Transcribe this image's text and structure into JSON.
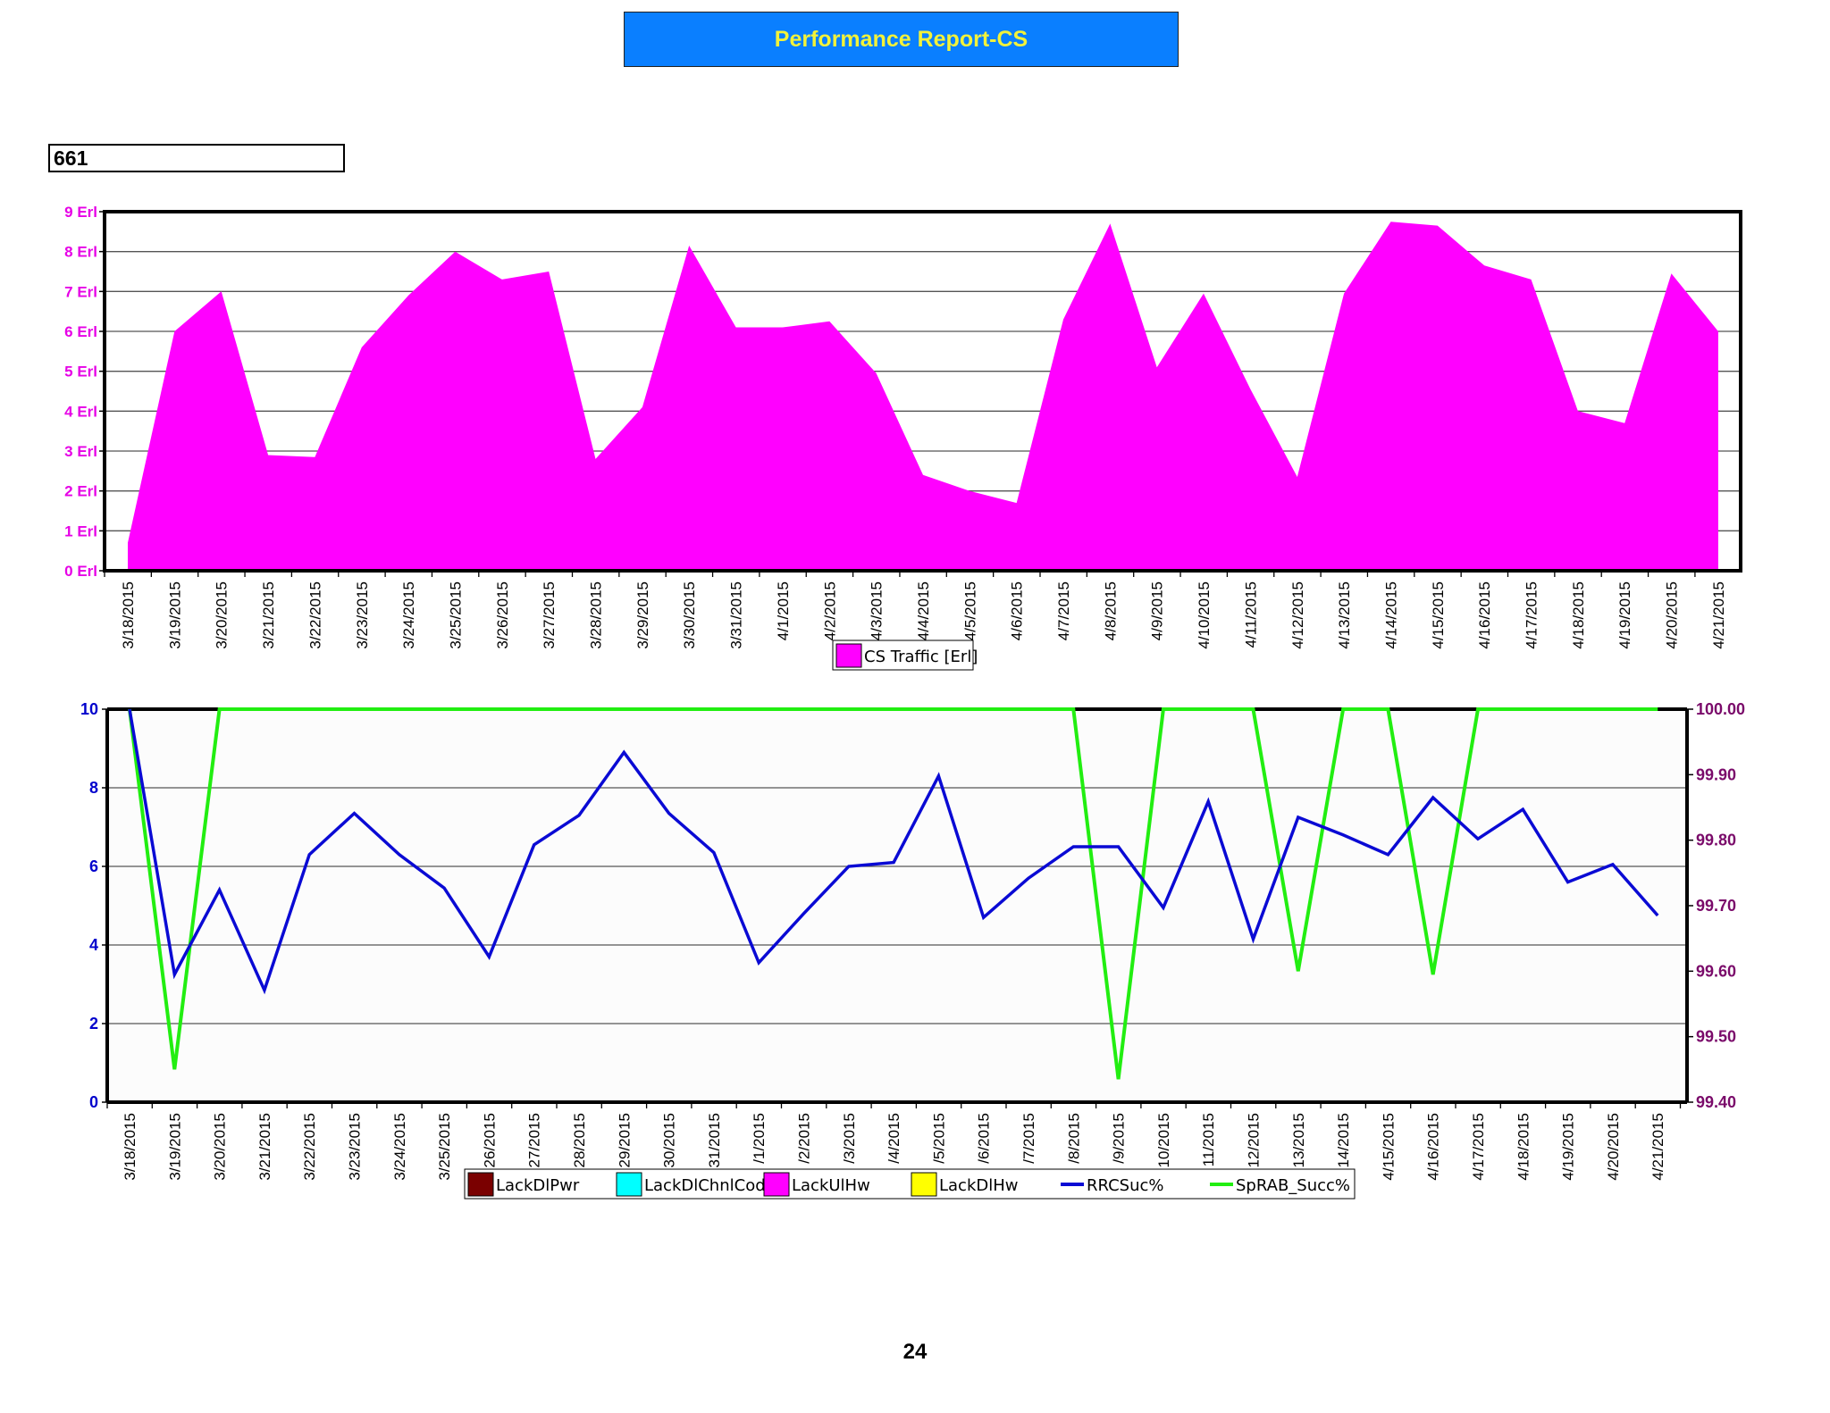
{
  "page_title": "Performance Report-CS",
  "cell_id": "661",
  "page_number": "24",
  "colors": {
    "banner_bg": "#0a7fff",
    "banner_text": "#f2f23a",
    "traffic_fill": "#ff00ff",
    "y_axis_top": "#e600e6",
    "y_axis_left_bottom": "#0000cc",
    "y_axis_right_bottom": "#7a0a6a",
    "rrc_line": "#0a0ad4",
    "sprab_line": "#22ee11",
    "lack_dl_pwr": "#7a0000",
    "lack_dl_chnl_code": "#00ffff",
    "lack_ul_hw": "#ff00ff",
    "lack_dl_hw": "#ffff00"
  },
  "chart_data": [
    {
      "type": "area",
      "categories": [
        "3/18/2015",
        "3/19/2015",
        "3/20/2015",
        "3/21/2015",
        "3/22/2015",
        "3/23/2015",
        "3/24/2015",
        "3/25/2015",
        "3/26/2015",
        "3/27/2015",
        "3/28/2015",
        "3/29/2015",
        "3/30/2015",
        "3/31/2015",
        "4/1/2015",
        "4/2/2015",
        "4/3/2015",
        "4/4/2015",
        "4/5/2015",
        "4/6/2015",
        "4/7/2015",
        "4/8/2015",
        "4/9/2015",
        "4/10/2015",
        "4/11/2015",
        "4/12/2015",
        "4/13/2015",
        "4/14/2015",
        "4/15/2015",
        "4/16/2015",
        "4/17/2015",
        "4/18/2015",
        "4/19/2015",
        "4/20/2015",
        "4/21/2015"
      ],
      "series": [
        {
          "name": "CS Traffic [Erl]",
          "values": [
            0.7,
            6.0,
            7.0,
            2.9,
            2.85,
            5.6,
            6.9,
            8.0,
            7.3,
            7.5,
            2.8,
            4.1,
            8.15,
            6.1,
            6.1,
            6.25,
            4.95,
            2.4,
            2.0,
            1.7,
            6.3,
            8.7,
            5.1,
            6.95,
            4.55,
            2.35,
            6.95,
            8.75,
            8.65,
            7.65,
            7.3,
            4.0,
            3.7,
            7.45,
            6.0
          ]
        }
      ],
      "y_ticks": [
        "0 Erl",
        "1 Erl",
        "2 Erl",
        "3 Erl",
        "4 Erl",
        "5 Erl",
        "6 Erl",
        "7 Erl",
        "8 Erl",
        "9 Erl"
      ],
      "ylim": [
        0,
        9
      ],
      "legend": [
        {
          "label": "CS Traffic [Erl]",
          "kind": "box",
          "color": "#ff00ff"
        }
      ],
      "legend_position": "bottom-center",
      "grid": true
    },
    {
      "type": "line",
      "categories": [
        "3/18/2015",
        "3/19/2015",
        "3/20/2015",
        "3/21/2015",
        "3/22/2015",
        "3/23/2015",
        "3/24/2015",
        "3/25/2015",
        "26/2015",
        "27/2015",
        "28/2015",
        "29/2015",
        "30/2015",
        "31/2015",
        "/1/2015",
        "/2/2015",
        "/3/2015",
        "/4/2015",
        "/5/2015",
        "/6/2015",
        "/7/2015",
        "/8/2015",
        "/9/2015",
        "10/2015",
        "11/2015",
        "12/2015",
        "13/2015",
        "14/2015",
        "4/15/2015",
        "4/16/2015",
        "4/17/2015",
        "4/18/2015",
        "4/19/2015",
        "4/20/2015",
        "4/21/2015"
      ],
      "series": [
        {
          "name": "RRCSuc%",
          "axis": "left",
          "values": [
            10.0,
            3.25,
            5.4,
            2.85,
            6.3,
            7.35,
            6.3,
            5.45,
            3.7,
            6.55,
            7.3,
            8.9,
            7.35,
            6.35,
            3.55,
            4.8,
            6.0,
            6.1,
            8.3,
            4.7,
            5.7,
            6.5,
            6.5,
            4.95,
            7.65,
            4.15,
            7.25,
            6.8,
            6.3,
            7.75,
            6.7,
            7.45,
            5.6,
            6.05,
            4.75
          ]
        },
        {
          "name": "SpRAB_Succ%",
          "axis": "right",
          "values": [
            100.0,
            99.45,
            100.0,
            100.0,
            100.0,
            100.0,
            100.0,
            100.0,
            100.0,
            100.0,
            100.0,
            100.0,
            100.0,
            100.0,
            100.0,
            100.0,
            100.0,
            100.0,
            100.0,
            100.0,
            100.0,
            100.0,
            99.435,
            100.0,
            100.0,
            100.0,
            99.6,
            100.0,
            100.0,
            99.595,
            100.0,
            100.0,
            100.0,
            100.0,
            100.0
          ]
        }
      ],
      "y_left_ticks": [
        "0",
        "2",
        "4",
        "6",
        "8",
        "10"
      ],
      "ylim_left": [
        0,
        10
      ],
      "y_right_ticks": [
        "99.40",
        "99.50",
        "99.60",
        "99.70",
        "99.80",
        "99.90",
        "100.00"
      ],
      "ylim_right": [
        99.4,
        100.0
      ],
      "legend": [
        {
          "label": "LackDlPwr",
          "kind": "box",
          "color": "#7a0000"
        },
        {
          "label": "LackDlChnlCode",
          "kind": "box",
          "color": "#00ffff"
        },
        {
          "label": "LackUlHw",
          "kind": "box",
          "color": "#ff00ff"
        },
        {
          "label": "LackDlHw",
          "kind": "box",
          "color": "#ffff00"
        },
        {
          "label": "RRCSuc%",
          "kind": "line",
          "color": "#0a0ad4"
        },
        {
          "label": "SpRAB_Succ%",
          "kind": "line",
          "color": "#22ee11"
        }
      ],
      "legend_position": "bottom-center",
      "grid": true
    }
  ]
}
